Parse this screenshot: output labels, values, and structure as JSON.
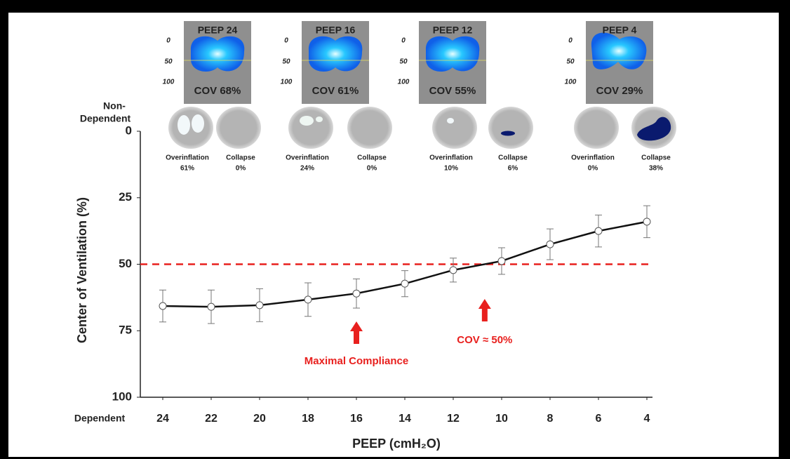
{
  "chart_data": {
    "type": "line",
    "x_label": "PEEP (cmH₂O)",
    "y_label": "Center of Ventilation (%)",
    "top_label": [
      "Non-",
      "Dependent"
    ],
    "bottom_label": "Dependent",
    "x": [
      24,
      22,
      20,
      18,
      16,
      14,
      12,
      10,
      8,
      6,
      4
    ],
    "xlim": [
      25,
      3
    ],
    "xticks": [
      24,
      22,
      20,
      18,
      16,
      14,
      12,
      10,
      8,
      6,
      4
    ],
    "ylim": [
      0,
      100
    ],
    "y_inverted": true,
    "yticks": [
      0,
      25,
      50,
      75,
      100
    ],
    "series": [
      {
        "color": "#111111",
        "values": [
          65.7,
          66,
          65.4,
          63.3,
          61,
          57.3,
          52.2,
          48.8,
          42.5,
          37.5,
          34
        ],
        "errors": [
          6,
          6.3,
          6.2,
          6.3,
          5.5,
          4.9,
          4.5,
          5,
          5.8,
          6,
          6
        ]
      }
    ],
    "reference_line": {
      "value": 50,
      "color": "#e8201e"
    },
    "annotations": [
      {
        "text": "Maximal Compliance",
        "x": 16,
        "color": "#e8201e"
      },
      {
        "text": "COV ≈ 50%",
        "x": 10.7,
        "color": "#e8201e"
      }
    ],
    "insets": [
      {
        "title": "PEEP 24",
        "cov": "COV 68%",
        "axis_labels": [
          "0",
          "50",
          "100"
        ],
        "overinflation": [
          "Overinflation",
          "61%"
        ],
        "collapse": [
          "Collapse",
          "0%"
        ]
      },
      {
        "title": "PEEP 16",
        "cov": "COV 61%",
        "axis_labels": [
          "0",
          "50",
          "100"
        ],
        "overinflation": [
          "Overinflation",
          "24%"
        ],
        "collapse": [
          "Collapse",
          "0%"
        ]
      },
      {
        "title": "PEEP 12",
        "cov": "COV 55%",
        "axis_labels": [
          "0",
          "50",
          "100"
        ],
        "overinflation": [
          "Overinflation",
          "10%"
        ],
        "collapse": [
          "Collapse",
          "6%"
        ]
      },
      {
        "title": "PEEP 4",
        "cov": "COV 29%",
        "axis_labels": [
          "0",
          "50",
          "100"
        ],
        "overinflation": [
          "Overinflation",
          "0%"
        ],
        "collapse": [
          "Collapse",
          "38%"
        ]
      }
    ]
  }
}
